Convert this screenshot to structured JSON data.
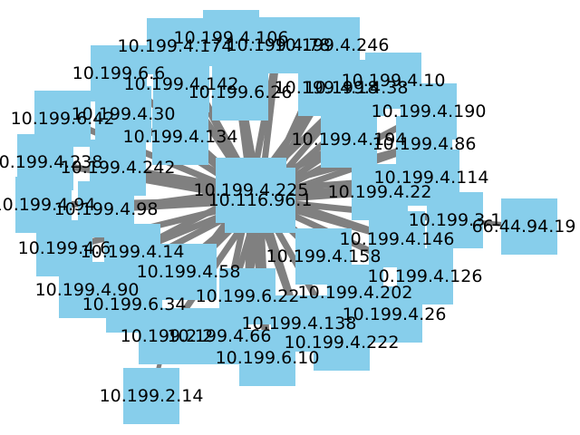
{
  "graph": {
    "node_color": "#87ceeb",
    "edge_color": "#808080",
    "hub_primary": "10.116.96.1",
    "hub_secondary": "10.199.4.225",
    "nodes": [
      {
        "id": "10.199.4.106"
      },
      {
        "id": "10.199.4.174"
      },
      {
        "id": "10.199.4.78"
      },
      {
        "id": "10.199.4.246"
      },
      {
        "id": "10.199.6.6"
      },
      {
        "id": "10.199.4.142"
      },
      {
        "id": "10.199.4.10"
      },
      {
        "id": "10.199.4.18"
      },
      {
        "id": "10.199.4.38"
      },
      {
        "id": "10.199.6.26"
      },
      {
        "id": "10.199.4.190"
      },
      {
        "id": "10.199.6.42"
      },
      {
        "id": "10.199.4.30"
      },
      {
        "id": "10.199.4.134"
      },
      {
        "id": "10.199.4.194"
      },
      {
        "id": "10.199.4.86"
      },
      {
        "id": "10.199.4.238"
      },
      {
        "id": "10.199.4.242"
      },
      {
        "id": "10.199.4.114"
      },
      {
        "id": "10.199.4.225"
      },
      {
        "id": "10.116.96.1"
      },
      {
        "id": "10.199.4.22"
      },
      {
        "id": "10.199.4.94"
      },
      {
        "id": "10.199.4.98"
      },
      {
        "id": "10.199.3.1"
      },
      {
        "id": "66.44.94.19"
      },
      {
        "id": "10.199.4.146"
      },
      {
        "id": "10.199.4.6"
      },
      {
        "id": "10.199.4.14"
      },
      {
        "id": "10.199.4.158"
      },
      {
        "id": "10.199.4.58"
      },
      {
        "id": "10.199.4.126"
      },
      {
        "id": "10.199.4.90"
      },
      {
        "id": "10.199.6.22"
      },
      {
        "id": "10.199.4.202"
      },
      {
        "id": "10.199.6.34"
      },
      {
        "id": "10.199.4.26"
      },
      {
        "id": "10.199.4.138"
      },
      {
        "id": "10.199.2.2"
      },
      {
        "id": "10.199.4.66"
      },
      {
        "id": "10.199.4.222"
      },
      {
        "id": "10.199.6.10"
      },
      {
        "id": "10.199.2.14"
      }
    ],
    "edges": [
      [
        "10.116.96.1",
        "10.199.4.106"
      ],
      [
        "10.116.96.1",
        "10.199.4.174"
      ],
      [
        "10.116.96.1",
        "10.199.4.78"
      ],
      [
        "10.116.96.1",
        "10.199.4.246"
      ],
      [
        "10.116.96.1",
        "10.199.6.6"
      ],
      [
        "10.116.96.1",
        "10.199.4.142"
      ],
      [
        "10.116.96.1",
        "10.199.4.10"
      ],
      [
        "10.116.96.1",
        "10.199.4.18"
      ],
      [
        "10.116.96.1",
        "10.199.4.38"
      ],
      [
        "10.116.96.1",
        "10.199.6.26"
      ],
      [
        "10.116.96.1",
        "10.199.4.190"
      ],
      [
        "10.116.96.1",
        "10.199.6.42"
      ],
      [
        "10.116.96.1",
        "10.199.4.30"
      ],
      [
        "10.116.96.1",
        "10.199.4.134"
      ],
      [
        "10.116.96.1",
        "10.199.4.194"
      ],
      [
        "10.116.96.1",
        "10.199.4.86"
      ],
      [
        "10.116.96.1",
        "10.199.4.238"
      ],
      [
        "10.116.96.1",
        "10.199.4.242"
      ],
      [
        "10.116.96.1",
        "10.199.4.114"
      ],
      [
        "10.116.96.1",
        "10.199.4.22"
      ],
      [
        "10.116.96.1",
        "10.199.4.94"
      ],
      [
        "10.116.96.1",
        "10.199.4.98"
      ],
      [
        "10.116.96.1",
        "10.199.3.1"
      ],
      [
        "10.116.96.1",
        "10.199.4.146"
      ],
      [
        "10.116.96.1",
        "10.199.4.6"
      ],
      [
        "10.116.96.1",
        "10.199.4.14"
      ],
      [
        "10.116.96.1",
        "10.199.4.158"
      ],
      [
        "10.116.96.1",
        "10.199.4.58"
      ],
      [
        "10.116.96.1",
        "10.199.4.126"
      ],
      [
        "10.116.96.1",
        "10.199.4.90"
      ],
      [
        "10.116.96.1",
        "10.199.6.22"
      ],
      [
        "10.116.96.1",
        "10.199.4.202"
      ],
      [
        "10.116.96.1",
        "10.199.6.34"
      ],
      [
        "10.116.96.1",
        "10.199.4.26"
      ],
      [
        "10.116.96.1",
        "10.199.4.138"
      ],
      [
        "10.116.96.1",
        "10.199.2.2"
      ],
      [
        "10.116.96.1",
        "10.199.4.66"
      ],
      [
        "10.116.96.1",
        "10.199.4.222"
      ],
      [
        "10.116.96.1",
        "10.199.6.10"
      ],
      [
        "10.199.4.225",
        "10.199.4.106"
      ],
      [
        "10.199.4.225",
        "10.199.4.174"
      ],
      [
        "10.199.4.225",
        "10.199.4.78"
      ],
      [
        "10.199.4.225",
        "10.199.4.142"
      ],
      [
        "10.199.4.225",
        "10.199.6.26"
      ],
      [
        "10.199.4.225",
        "10.199.4.18"
      ],
      [
        "10.199.4.225",
        "10.199.4.38"
      ],
      [
        "10.199.4.225",
        "10.199.4.194"
      ],
      [
        "10.199.4.225",
        "10.199.4.134"
      ],
      [
        "10.199.4.225",
        "10.199.4.242"
      ],
      [
        "10.199.4.225",
        "10.199.4.22"
      ],
      [
        "10.199.4.225",
        "10.199.4.98"
      ],
      [
        "10.199.4.225",
        "10.199.4.14"
      ],
      [
        "10.199.4.225",
        "10.199.4.58"
      ],
      [
        "10.199.4.225",
        "10.199.6.22"
      ],
      [
        "10.199.4.225",
        "10.199.4.158"
      ],
      [
        "10.199.4.225",
        "10.199.4.146"
      ],
      [
        "10.199.4.225",
        "10.199.4.202"
      ],
      [
        "10.199.4.225",
        "10.199.4.138"
      ],
      [
        "10.199.4.225",
        "10.199.4.66"
      ],
      [
        "10.199.4.225",
        "10.199.6.10"
      ],
      [
        "10.199.4.225",
        "10.199.4.114"
      ],
      [
        "10.199.4.225",
        "10.199.4.86"
      ],
      [
        "10.199.3.1",
        "66.44.94.19"
      ],
      [
        "10.199.2.2",
        "10.199.2.14"
      ]
    ]
  }
}
